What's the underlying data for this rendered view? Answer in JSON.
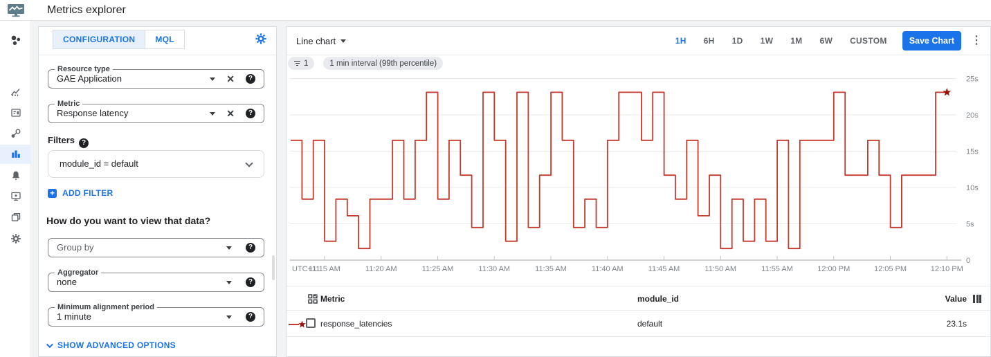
{
  "colors": {
    "accent": "#1a73e8",
    "line": "#c5392d",
    "star": "#991308",
    "grid": "#e8eaed",
    "axis": "#9aa0a6",
    "tick_label": "#80868b"
  },
  "icons": {
    "help": "?",
    "clear": "✕",
    "add": "+",
    "more_vert": "⋮",
    "filter_count_glyph": "filter-list"
  },
  "header": {
    "title": "Metrics explorer"
  },
  "nav": {
    "selected": "metrics-explorer",
    "items": [
      "monitoring-overview",
      "dashboards",
      "dashboards-card",
      "services",
      "metrics-explorer",
      "alerting",
      "uptime-checks",
      "groups",
      "settings"
    ]
  },
  "config": {
    "tabs": [
      {
        "label": "CONFIGURATION",
        "selected": true
      },
      {
        "label": "MQL",
        "selected": false
      }
    ],
    "resource_type": {
      "label": "Resource type",
      "value": "GAE Application"
    },
    "metric": {
      "label": "Metric",
      "value": "Response latency"
    },
    "filters_heading": "Filters",
    "filter_chip": "module_id = default",
    "add_filter": "ADD FILTER",
    "question": "How do you want to view that data?",
    "group_by": {
      "placeholder": "Group by"
    },
    "aggregator": {
      "label": "Aggregator",
      "value": "none"
    },
    "alignment": {
      "label": "Minimum alignment period",
      "value": "1 minute"
    },
    "advanced": "SHOW ADVANCED OPTIONS"
  },
  "toolbar": {
    "chart_type": "Line chart",
    "chips": [
      {
        "label": "1"
      },
      {
        "label": "1 min interval (99th percentile)"
      }
    ],
    "time_ranges": [
      "1H",
      "6H",
      "1D",
      "1W",
      "1M",
      "6W",
      "CUSTOM"
    ],
    "selected_range": "1H",
    "save_button": "Save Chart"
  },
  "chart_data": {
    "type": "line",
    "step": "after",
    "unit": "seconds",
    "start_time": "11:12 AM",
    "interval_minutes": 1,
    "x_axis_prefix": "UTC+11",
    "x_ticks": [
      "11:15 AM",
      "11:20 AM",
      "11:25 AM",
      "11:30 AM",
      "11:35 AM",
      "11:40 AM",
      "11:45 AM",
      "11:50 AM",
      "11:55 AM",
      "12:00 PM",
      "12:05 PM",
      "12:10 PM"
    ],
    "y_ticks": [
      "0",
      "5s",
      "10s",
      "15s",
      "20s",
      "25s"
    ],
    "ylim": [
      0,
      25
    ],
    "grid": "horizontal-only",
    "legend_position": "table-below",
    "series": [
      {
        "name": "response_latencies",
        "end_marker": "star",
        "values": [
          16.5,
          8.4,
          16.5,
          2.6,
          8.4,
          6.1,
          1.6,
          8.4,
          8.4,
          16.5,
          8.4,
          16.5,
          23.1,
          8.4,
          16.5,
          11.7,
          4.5,
          23.1,
          16.5,
          2.6,
          23.1,
          4.5,
          11.7,
          23.1,
          16.5,
          4.5,
          8.4,
          4.5,
          16.5,
          23.1,
          23.1,
          16.5,
          23.1,
          11.7,
          8.4,
          16.5,
          6.1,
          11.7,
          1.6,
          8.4,
          2.6,
          8.4,
          2.6,
          16.5,
          1.6,
          16.5,
          16.5,
          16.5,
          23.1,
          11.7,
          11.7,
          16.5,
          11.7,
          4.5,
          11.7,
          11.7,
          11.7,
          23.1,
          23.1
        ]
      }
    ]
  },
  "table": {
    "columns": [
      {
        "label": "Metric"
      },
      {
        "label": "module_id"
      },
      {
        "label": "Value"
      }
    ],
    "rows": [
      {
        "metric": "response_latencies",
        "module_id": "default",
        "value": "23.1s"
      }
    ]
  }
}
